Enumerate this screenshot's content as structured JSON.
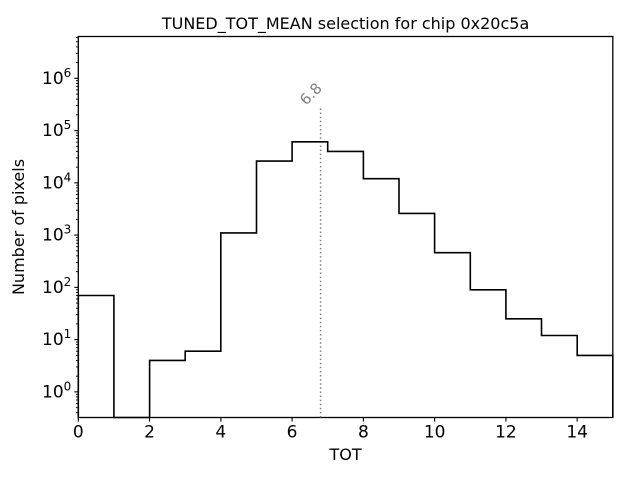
{
  "figure": {
    "title": "TUNED_TOT_MEAN selection for chip 0x20c5a",
    "xlabel": "TOT",
    "ylabel": "Number of pixels",
    "background": "#ffffff",
    "frame_color": "#000000"
  },
  "chart_data": {
    "type": "bar",
    "subtype": "step-histogram",
    "title": "TUNED_TOT_MEAN selection for chip 0x20c5a",
    "xlabel": "TOT",
    "ylabel": "Number of pixels",
    "x_range": [
      0,
      15
    ],
    "y_scale": "log",
    "y_range_log10": [
      -0.49,
      6.8
    ],
    "x_ticks": [
      0,
      2,
      4,
      6,
      8,
      10,
      12,
      14
    ],
    "y_tick_exponents": [
      0,
      1,
      2,
      3,
      4,
      5,
      6
    ],
    "grid": false,
    "legend": "none",
    "bin_edges": [
      0,
      1,
      2,
      3,
      4,
      5,
      6,
      7,
      8,
      9,
      10,
      11,
      12,
      13,
      14,
      15
    ],
    "counts": [
      70,
      0,
      4,
      6,
      1100,
      26000,
      61000,
      40000,
      12000,
      2600,
      460,
      90,
      25,
      12,
      5
    ],
    "line_color": "#000000",
    "vline": {
      "x": 6.8,
      "label": "6.8",
      "color": "#808080",
      "style": "dotted",
      "label_rotation_deg": 45
    }
  }
}
